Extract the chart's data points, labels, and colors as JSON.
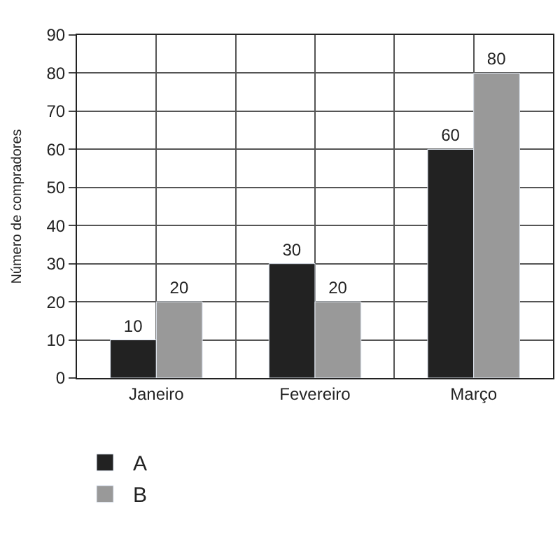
{
  "chart_data": {
    "type": "bar",
    "ylabel": "Número de compradores",
    "categories": [
      "Janeiro",
      "Fevereiro",
      "Março"
    ],
    "series": [
      {
        "name": "A",
        "color": "#222222",
        "values": [
          10,
          30,
          60
        ]
      },
      {
        "name": "B",
        "color": "#999999",
        "values": [
          20,
          20,
          80
        ]
      }
    ],
    "ylim": [
      0,
      90
    ],
    "yticks": [
      0,
      10,
      20,
      30,
      40,
      50,
      60,
      70,
      80,
      90
    ],
    "grid": true,
    "legend": "bottom left",
    "data_labels": true
  }
}
